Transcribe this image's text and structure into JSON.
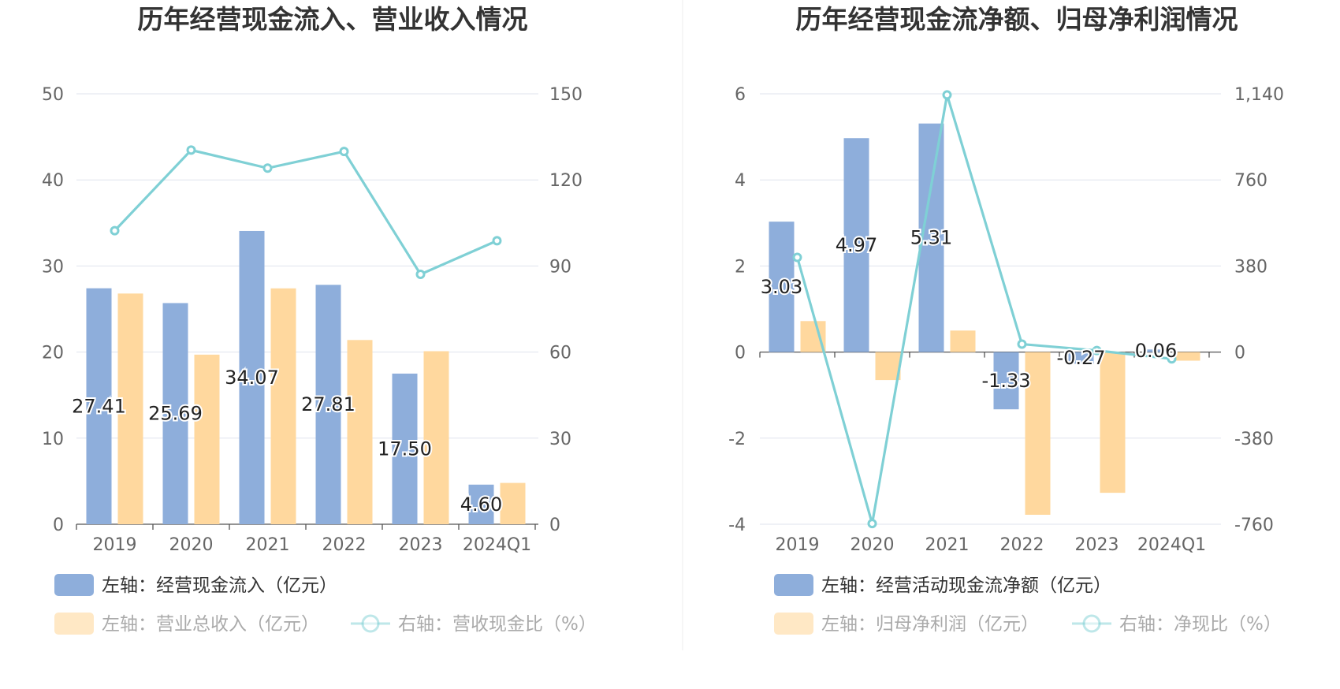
{
  "colors": {
    "bar_primary": "#8eaedb",
    "bar_secondary": "#ffd89e",
    "line": "#7fd0d5",
    "grid": "#dfe3ee",
    "axis_text": "#666666",
    "title_text": "#333333",
    "divider": "#eeeeee"
  },
  "chart_data": [
    {
      "type": "bar+line",
      "title": "历年经营现金流入、营业收入情况",
      "categories": [
        "2019",
        "2020",
        "2021",
        "2022",
        "2023",
        "2024Q1"
      ],
      "left_axis": {
        "ticks": [
          "0",
          "10",
          "20",
          "30",
          "40",
          "50"
        ],
        "range": [
          0,
          50
        ]
      },
      "right_axis": {
        "ticks": [
          "0",
          "30",
          "60",
          "90",
          "120",
          "150"
        ],
        "range": [
          0,
          150
        ]
      },
      "series": [
        {
          "name": "左轴：经营现金流入（亿元）",
          "kind": "bar",
          "axis": "left",
          "values": [
            27.41,
            25.69,
            34.07,
            27.81,
            17.5,
            4.6
          ],
          "labels": [
            "27.41",
            "25.69",
            "34.07",
            "27.81",
            "17.50",
            "4.60"
          ]
        },
        {
          "name": "左轴：营业总收入（亿元）",
          "kind": "bar",
          "axis": "left",
          "values": [
            26.8,
            19.7,
            27.4,
            21.4,
            20.1,
            4.8
          ]
        },
        {
          "name": "右轴：营收现金比（%）",
          "kind": "line",
          "axis": "right",
          "values": [
            102.3,
            130.4,
            124.1,
            129.9,
            87.1,
            98.8
          ]
        }
      ],
      "legend_placement": "bottom"
    },
    {
      "type": "bar+line",
      "title": "历年经营现金流净额、归母净利润情况",
      "categories": [
        "2019",
        "2020",
        "2021",
        "2022",
        "2023",
        "2024Q1"
      ],
      "left_axis": {
        "ticks": [
          "-4",
          "-2",
          "0",
          "2",
          "4",
          "6"
        ],
        "range": [
          -4,
          6
        ]
      },
      "right_axis": {
        "ticks": [
          "-760",
          "-380",
          "0",
          "380",
          "760",
          "1,140"
        ],
        "range": [
          -760,
          1140
        ]
      },
      "series": [
        {
          "name": "左轴：经营活动现金流净额（亿元）",
          "kind": "bar",
          "axis": "left",
          "values": [
            3.03,
            4.97,
            5.31,
            -1.33,
            -0.27,
            0.06
          ],
          "labels": [
            "3.03",
            "4.97",
            "5.31",
            "-1.33",
            "-0.27",
            "0.06"
          ]
        },
        {
          "name": "左轴：归母净利润（亿元）",
          "kind": "bar",
          "axis": "left",
          "values": [
            0.72,
            -0.65,
            0.5,
            -3.78,
            -3.27,
            -0.2
          ]
        },
        {
          "name": "右轴：净现比（%）",
          "kind": "line",
          "axis": "right",
          "values": [
            418,
            -757,
            1135,
            35,
            7,
            -30
          ]
        }
      ],
      "legend_placement": "bottom"
    }
  ]
}
